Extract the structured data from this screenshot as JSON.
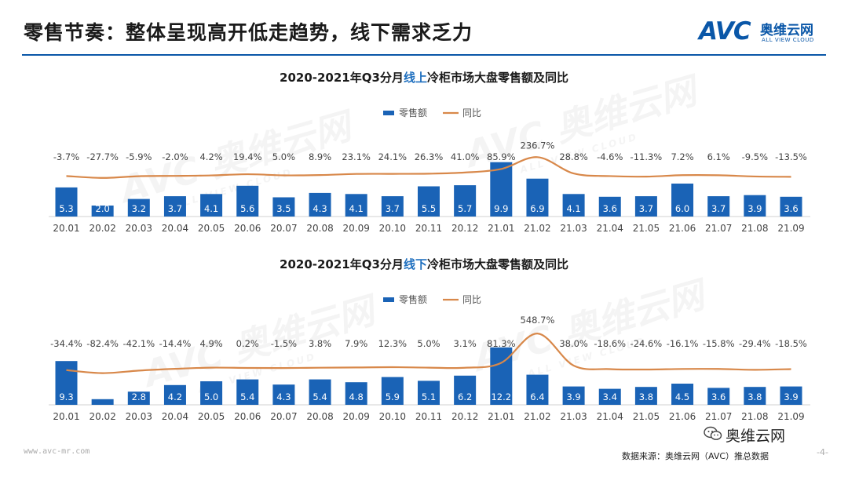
{
  "header": {
    "title": "零售节奏：整体呈现高开低走趋势，线下需求乏力",
    "logo_avc": "AVC",
    "logo_cn": "奥维云网",
    "logo_en": "ALL VIEW CLOUD"
  },
  "watermark": {
    "brand": "AVC 奥维云网",
    "sub": "ALL VIEW CLOUD"
  },
  "chart_data": [
    {
      "type": "bar",
      "title_pre": "2020-2021年Q3分月",
      "title_hl": "线上",
      "title_post": "冷柜市场大盘零售额及同比",
      "legend": [
        "零售额",
        "同比"
      ],
      "legend_position": "top-center",
      "categories": [
        "20.01",
        "20.02",
        "20.03",
        "20.04",
        "20.05",
        "20.06",
        "20.07",
        "20.08",
        "20.09",
        "20.10",
        "20.11",
        "20.12",
        "21.01",
        "21.02",
        "21.03",
        "21.04",
        "21.05",
        "21.06",
        "21.07",
        "21.08",
        "21.09"
      ],
      "series": [
        {
          "name": "零售额",
          "type": "bar",
          "values": [
            5.3,
            2.0,
            3.2,
            3.7,
            4.1,
            5.6,
            3.5,
            4.3,
            4.1,
            3.7,
            5.5,
            5.7,
            9.9,
            6.9,
            4.1,
            3.6,
            3.7,
            6.0,
            3.7,
            3.9,
            3.6
          ]
        },
        {
          "name": "同比",
          "type": "line",
          "values": [
            -3.7,
            -27.7,
            -5.9,
            -2.0,
            4.2,
            19.4,
            5.0,
            8.9,
            23.1,
            24.1,
            26.3,
            41.0,
            85.9,
            236.7,
            28.8,
            -4.6,
            -11.3,
            7.2,
            6.1,
            -9.5,
            -13.5
          ]
        }
      ],
      "bar_labels": [
        "5.3",
        "2.0",
        "3.2",
        "3.7",
        "4.1",
        "5.6",
        "3.5",
        "4.3",
        "4.1",
        "3.7",
        "5.5",
        "5.7",
        "9.9",
        "6.9",
        "4.1",
        "3.6",
        "3.7",
        "6.0",
        "3.7",
        "3.9",
        "3.6"
      ],
      "line_labels": [
        "-3.7%",
        "-27.7%",
        "-5.9%",
        "-2.0%",
        "4.2%",
        "19.4%",
        "5.0%",
        "8.9%",
        "23.1%",
        "24.1%",
        "26.3%",
        "41.0%",
        "85.9%",
        "236.7%",
        "28.8%",
        "-4.6%",
        "-11.3%",
        "7.2%",
        "6.1%",
        "-9.5%",
        "-13.5%"
      ],
      "colors": {
        "bar": "#1a63b6",
        "line": "#d8884a"
      },
      "grid": false
    },
    {
      "type": "bar",
      "title_pre": "2020-2021年Q3分月",
      "title_hl": "线下",
      "title_post": "冷柜市场大盘零售额及同比",
      "legend": [
        "零售额",
        "同比"
      ],
      "legend_position": "top-center",
      "categories": [
        "20.01",
        "20.02",
        "20.03",
        "20.04",
        "20.05",
        "20.06",
        "20.07",
        "20.08",
        "20.09",
        "20.10",
        "20.11",
        "20.12",
        "21.01",
        "21.02",
        "21.03",
        "21.04",
        "21.05",
        "21.06",
        "21.07",
        "21.08",
        "21.09"
      ],
      "series": [
        {
          "name": "零售额",
          "type": "bar",
          "values": [
            9.3,
            1.2,
            2.8,
            4.2,
            5.0,
            5.4,
            4.3,
            5.4,
            4.8,
            5.9,
            5.1,
            6.2,
            12.2,
            6.4,
            3.9,
            3.4,
            3.8,
            4.5,
            3.6,
            3.8,
            3.9
          ]
        },
        {
          "name": "同比",
          "type": "line",
          "values": [
            -34.4,
            -82.4,
            -42.1,
            -14.4,
            4.9,
            0.2,
            -1.5,
            3.8,
            7.9,
            12.3,
            5.0,
            3.1,
            81.3,
            548.7,
            38.0,
            -18.6,
            -24.6,
            -16.1,
            -15.8,
            -29.4,
            -18.5
          ]
        }
      ],
      "bar_labels": [
        "9.3",
        "",
        "2.8",
        "4.2",
        "5.0",
        "5.4",
        "4.3",
        "5.4",
        "4.8",
        "5.9",
        "5.1",
        "6.2",
        "12.2",
        "6.4",
        "3.9",
        "3.4",
        "3.8",
        "4.5",
        "3.6",
        "3.8",
        "3.9"
      ],
      "line_labels": [
        "-34.4%",
        "-82.4%",
        "-42.1%",
        "-14.4%",
        "4.9%",
        "0.2%",
        "-1.5%",
        "3.8%",
        "7.9%",
        "12.3%",
        "5.0%",
        "3.1%",
        "81.3%",
        "548.7%",
        "38.0%",
        "-18.6%",
        "-24.6%",
        "-16.1%",
        "-15.8%",
        "-29.4%",
        "-18.5%"
      ],
      "colors": {
        "bar": "#1a63b6",
        "line": "#d8884a"
      },
      "grid": false
    }
  ],
  "footer": {
    "url": "www.avc-mr.com",
    "source": "数据来源：奥维云网（AVC）推总数据",
    "page": "-4-",
    "wechat_name": "奥维云网"
  }
}
